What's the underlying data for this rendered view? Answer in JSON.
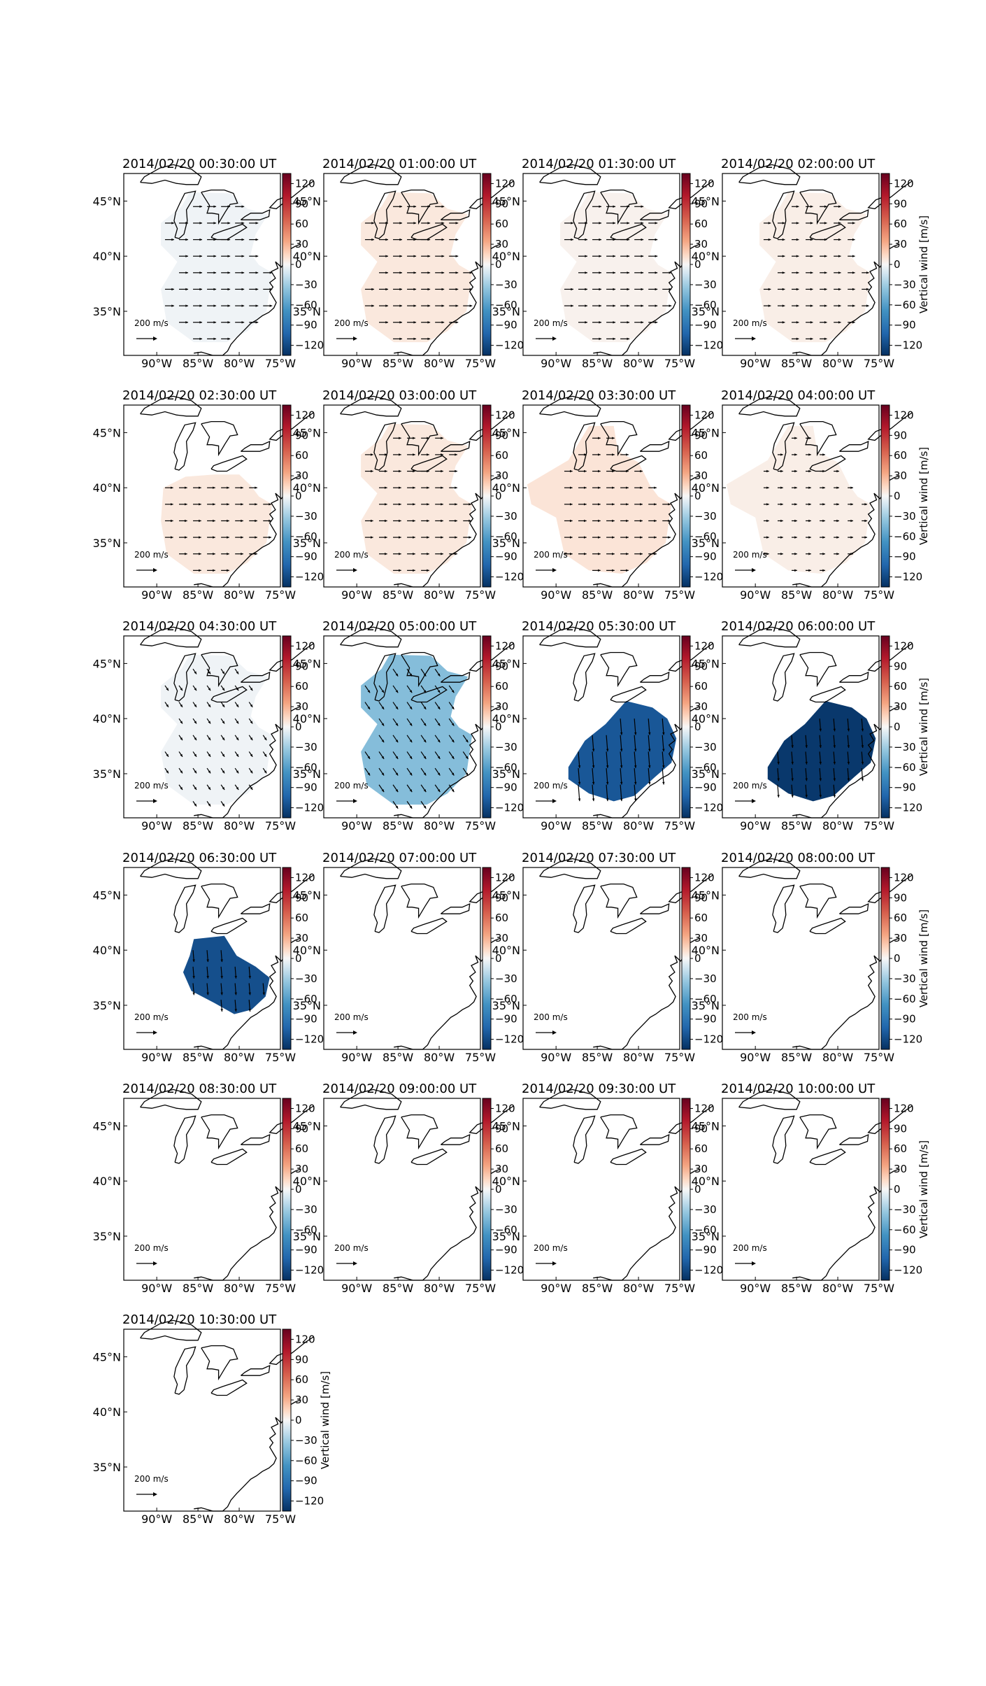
{
  "figure": {
    "colorbar_ticks": [
      "120",
      "90",
      "60",
      "30",
      "0",
      "−30",
      "−60",
      "−90",
      "−120"
    ],
    "colorbar_label": "Vertical wind [m/s]",
    "lat_labels": [
      "45°N",
      "40°N",
      "35°N"
    ],
    "lon_labels": [
      "90°W",
      "85°W",
      "80°W",
      "75°W"
    ],
    "quiver_key_label": "200 m/s",
    "colormap": "RdBu_r"
  },
  "chart_data": {
    "type": "heatmap",
    "description_map": "vertical wind with horizontal wind vectors over eastern United States",
    "clim": [
      -135,
      135
    ],
    "lon_range": [
      -94,
      -75
    ],
    "lat_range": [
      31,
      47.5
    ],
    "quiver_reference": 200,
    "panels": [
      {
        "title": "2014/02/20 00:30:00 UT",
        "value": -3,
        "region": "large",
        "direction": "east",
        "speed": 1.0
      },
      {
        "title": "2014/02/20 01:00:00 UT",
        "value": 8,
        "region": "large",
        "direction": "east",
        "speed": 1.0
      },
      {
        "title": "2014/02/20 01:30:00 UT",
        "value": 3,
        "region": "large",
        "direction": "east",
        "speed": 1.0
      },
      {
        "title": "2014/02/20 02:00:00 UT",
        "value": 5,
        "region": "large",
        "direction": "east",
        "speed": 0.8
      },
      {
        "title": "2014/02/20 02:30:00 UT",
        "value": 8,
        "region": "mid",
        "direction": "east",
        "speed": 0.9
      },
      {
        "title": "2014/02/20 03:00:00 UT",
        "value": 8,
        "region": "large",
        "direction": "east",
        "speed": 0.9
      },
      {
        "title": "2014/02/20 03:30:00 UT",
        "value": 10,
        "region": "wide",
        "direction": "east",
        "speed": 0.9
      },
      {
        "title": "2014/02/20 04:00:00 UT",
        "value": 5,
        "region": "wide",
        "direction": "east",
        "speed": 0.6
      },
      {
        "title": "2014/02/20 04:30:00 UT",
        "value": -3,
        "region": "large",
        "direction": "southeast",
        "speed": 0.7
      },
      {
        "title": "2014/02/20 05:00:00 UT",
        "value": -45,
        "region": "large",
        "direction": "southeast",
        "speed": 1.0
      },
      {
        "title": "2014/02/20 05:30:00 UT",
        "value": -110,
        "region": "south",
        "direction": "south",
        "speed": 1.8
      },
      {
        "title": "2014/02/20 06:00:00 UT",
        "value": -130,
        "region": "south",
        "direction": "south",
        "speed": 1.4
      },
      {
        "title": "2014/02/20 06:30:00 UT",
        "value": -115,
        "region": "blob",
        "direction": "south",
        "speed": 1.3
      },
      {
        "title": "2014/02/20 07:00:00 UT",
        "value": null,
        "region": "none",
        "direction": "none",
        "speed": 0
      },
      {
        "title": "2014/02/20 07:30:00 UT",
        "value": null,
        "region": "none",
        "direction": "none",
        "speed": 0
      },
      {
        "title": "2014/02/20 08:00:00 UT",
        "value": null,
        "region": "none",
        "direction": "none",
        "speed": 0
      },
      {
        "title": "2014/02/20 08:30:00 UT",
        "value": null,
        "region": "none",
        "direction": "none",
        "speed": 0
      },
      {
        "title": "2014/02/20 09:00:00 UT",
        "value": null,
        "region": "none",
        "direction": "none",
        "speed": 0
      },
      {
        "title": "2014/02/20 09:30:00 UT",
        "value": null,
        "region": "none",
        "direction": "none",
        "speed": 0
      },
      {
        "title": "2014/02/20 10:00:00 UT",
        "value": null,
        "region": "none",
        "direction": "none",
        "speed": 0
      },
      {
        "title": "2014/02/20 10:30:00 UT",
        "value": null,
        "region": "none",
        "direction": "none",
        "speed": 0
      }
    ]
  }
}
